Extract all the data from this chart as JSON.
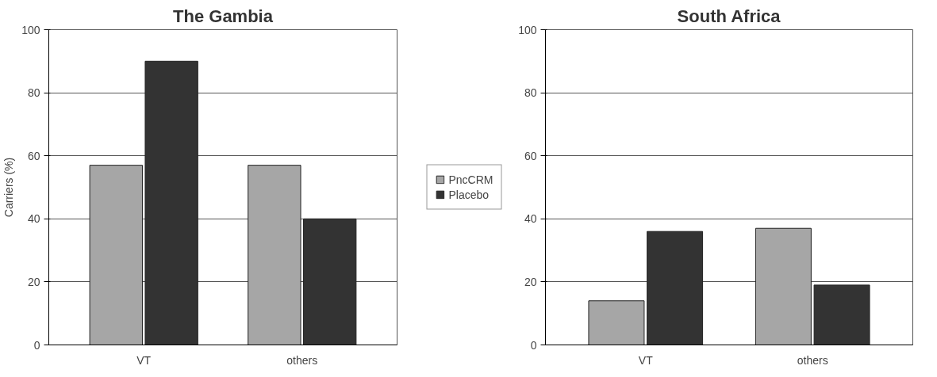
{
  "chart_data": [
    {
      "type": "bar",
      "title": "The Gambia",
      "ylabel": "Carriers (%)",
      "categories": [
        "VT",
        "others"
      ],
      "series": [
        {
          "name": "PncCRM",
          "color": "#a6a6a6",
          "values": [
            57,
            57
          ]
        },
        {
          "name": "Placebo",
          "color": "#333333",
          "values": [
            90,
            40
          ]
        }
      ],
      "ylim": [
        0,
        100
      ],
      "yticks": [
        0,
        20,
        40,
        60,
        80,
        100
      ],
      "grid": "y",
      "legend": "right"
    },
    {
      "type": "bar",
      "title": "South Africa",
      "categories": [
        "VT",
        "others"
      ],
      "series": [
        {
          "color": "#a6a6a6",
          "values": [
            14,
            37
          ]
        },
        {
          "color": "#333333",
          "values": [
            36,
            19
          ]
        }
      ],
      "ylim": [
        0,
        100
      ],
      "yticks": [
        0,
        20,
        40,
        60,
        80,
        100
      ],
      "grid": "y"
    }
  ]
}
